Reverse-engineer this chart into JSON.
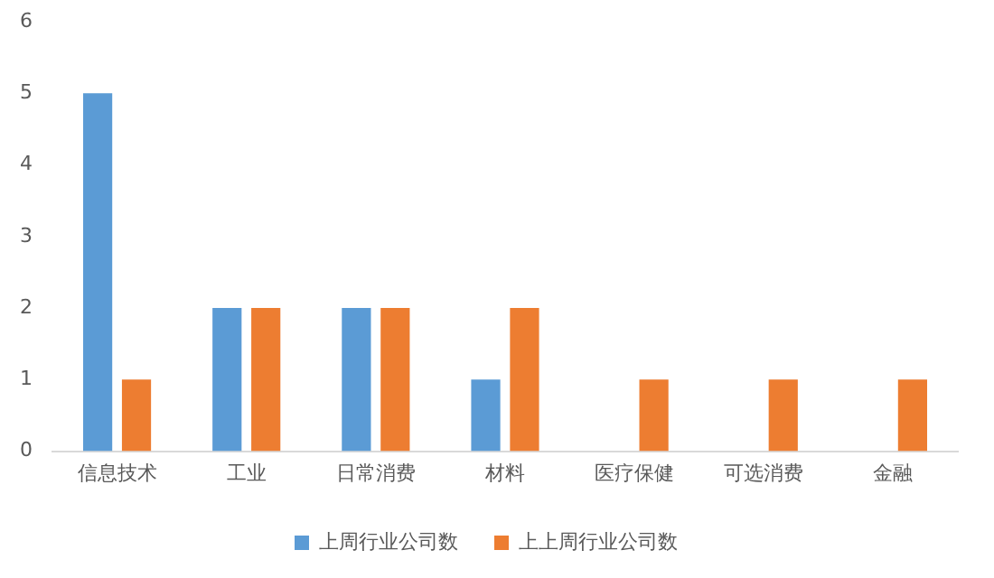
{
  "chart_data": {
    "type": "bar",
    "categories": [
      "信息技术",
      "工业",
      "日常消费",
      "材料",
      "医疗保健",
      "可选消费",
      "金融"
    ],
    "series": [
      {
        "name": "上周行业公司数",
        "color": "#5b9bd5",
        "values": [
          5,
          2,
          2,
          1,
          0,
          0,
          0
        ]
      },
      {
        "name": "上上周行业公司数",
        "color": "#ed7d31",
        "values": [
          1,
          2,
          2,
          2,
          1,
          1,
          1
        ]
      }
    ],
    "ylim": [
      0,
      6
    ],
    "yticks": [
      0,
      1,
      2,
      3,
      4,
      5,
      6
    ],
    "grid": false,
    "legend": "bottom"
  }
}
